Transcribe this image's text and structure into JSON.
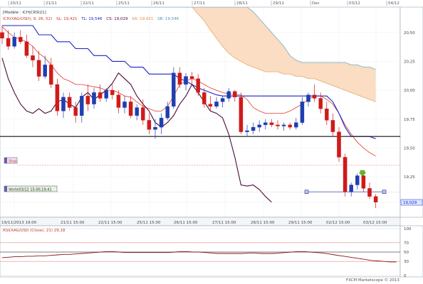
{
  "colors": {
    "up": "#1f3fb0",
    "down": "#d01a1a",
    "tenkan": "#e23a2a",
    "kijun": "#1a22c8",
    "chikou": "#4b0a3a",
    "cloud_fill": "#f9d7b8",
    "cloud_edge_a": "#e8b27a",
    "cloud_edge_b": "#7fb3c8",
    "grid": "#c9d4e2",
    "support": "#111111",
    "rsi_line": "#8a1515",
    "rsi_band": "#e58c8c"
  },
  "header": {
    "modele": "[Modèle : ICH|CRSI21]",
    "indicator_name": "ICH(XAG/USD), 9, 26, 52)",
    "sl": "SL: 19,421",
    "tl": "TL: 19,546",
    "cs": "CS: 19,029",
    "sa": "SA: 19,421",
    "sb": "SB: 19,546"
  },
  "top_axis": [
    "20/11",
    "21/11",
    "22/11",
    "25/11",
    "26/11",
    "27/11",
    "28/11",
    "29/11",
    "Dec",
    "03/12",
    "04/12"
  ],
  "bottom_axis": [
    "19/11/2013 19:00",
    "21/11 15:00",
    "22/11 15:00",
    "25/11 15:00",
    "26/11 15:00",
    "27/11 15:00",
    "28/11 15:00",
    "29/11 15:00",
    "02/12 15:00",
    "03/12 15:00"
  ],
  "price_ticks": [
    "20,50",
    "20,25",
    "20,00",
    "19,75",
    "19,50",
    "19,25"
  ],
  "price_tag": "19,029",
  "tags": {
    "stop_label": "Stop",
    "vente_label": "Vente03/12 15:00,19,41"
  },
  "rsi": {
    "label": "RSI(XAG/USD (Close), 21) 29,18",
    "ticks": [
      "100",
      "70",
      "50",
      "30",
      "0"
    ],
    "levels": [
      100,
      70,
      50,
      30,
      0
    ]
  },
  "footer_credit": "FXCM Marketscope © 2013",
  "chart_data": {
    "type": "candlestick",
    "symbol": "XAG/USD",
    "ylim": [
      18.9,
      20.72
    ],
    "price_ticks": [
      20.5,
      20.25,
      20.0,
      19.75,
      19.5,
      19.25
    ],
    "support_level": 19.6,
    "stop_level": 19.35,
    "entry_level": 19.12,
    "last_price": 19.029,
    "candles": [
      {
        "o": 20.5,
        "h": 20.56,
        "l": 20.4,
        "c": 20.45
      },
      {
        "o": 20.45,
        "h": 20.52,
        "l": 20.35,
        "c": 20.38
      },
      {
        "o": 20.38,
        "h": 20.5,
        "l": 20.36,
        "c": 20.46
      },
      {
        "o": 20.46,
        "h": 20.52,
        "l": 20.4,
        "c": 20.42
      },
      {
        "o": 20.42,
        "h": 20.48,
        "l": 20.28,
        "c": 20.3
      },
      {
        "o": 20.3,
        "h": 20.38,
        "l": 20.2,
        "c": 20.26
      },
      {
        "o": 20.26,
        "h": 20.34,
        "l": 20.08,
        "c": 20.12
      },
      {
        "o": 20.12,
        "h": 20.3,
        "l": 20.1,
        "c": 20.22
      },
      {
        "o": 20.22,
        "h": 20.28,
        "l": 20.02,
        "c": 20.05
      },
      {
        "o": 20.05,
        "h": 20.1,
        "l": 19.78,
        "c": 19.82
      },
      {
        "o": 19.82,
        "h": 19.98,
        "l": 19.76,
        "c": 19.94
      },
      {
        "o": 19.94,
        "h": 19.98,
        "l": 19.82,
        "c": 19.85
      },
      {
        "o": 19.85,
        "h": 19.9,
        "l": 19.72,
        "c": 19.78
      },
      {
        "o": 19.78,
        "h": 19.98,
        "l": 19.72,
        "c": 19.95
      },
      {
        "o": 19.95,
        "h": 20.05,
        "l": 19.82,
        "c": 19.88
      },
      {
        "o": 19.88,
        "h": 20.02,
        "l": 19.84,
        "c": 19.98
      },
      {
        "o": 19.98,
        "h": 20.05,
        "l": 19.9,
        "c": 19.93
      },
      {
        "o": 19.93,
        "h": 20.02,
        "l": 19.9,
        "c": 20.0
      },
      {
        "o": 20.0,
        "h": 20.05,
        "l": 19.92,
        "c": 19.96
      },
      {
        "o": 19.96,
        "h": 20.0,
        "l": 19.8,
        "c": 19.85
      },
      {
        "o": 19.85,
        "h": 19.95,
        "l": 19.8,
        "c": 19.9
      },
      {
        "o": 19.9,
        "h": 19.95,
        "l": 19.76,
        "c": 19.78
      },
      {
        "o": 19.78,
        "h": 19.88,
        "l": 19.74,
        "c": 19.85
      },
      {
        "o": 19.85,
        "h": 19.92,
        "l": 19.7,
        "c": 19.74
      },
      {
        "o": 19.74,
        "h": 19.8,
        "l": 19.62,
        "c": 19.66
      },
      {
        "o": 19.66,
        "h": 19.75,
        "l": 19.58,
        "c": 19.68
      },
      {
        "o": 19.68,
        "h": 19.8,
        "l": 19.62,
        "c": 19.76
      },
      {
        "o": 19.76,
        "h": 19.9,
        "l": 19.74,
        "c": 19.86
      },
      {
        "o": 19.86,
        "h": 20.2,
        "l": 19.84,
        "c": 20.15
      },
      {
        "o": 20.15,
        "h": 20.2,
        "l": 20.02,
        "c": 20.05
      },
      {
        "o": 20.05,
        "h": 20.15,
        "l": 20.0,
        "c": 20.12
      },
      {
        "o": 20.12,
        "h": 20.16,
        "l": 20.05,
        "c": 20.1
      },
      {
        "o": 20.1,
        "h": 20.14,
        "l": 19.95,
        "c": 19.98
      },
      {
        "o": 19.98,
        "h": 20.02,
        "l": 19.85,
        "c": 19.88
      },
      {
        "o": 19.88,
        "h": 19.95,
        "l": 19.82,
        "c": 19.86
      },
      {
        "o": 19.86,
        "h": 19.94,
        "l": 19.84,
        "c": 19.9
      },
      {
        "o": 19.9,
        "h": 19.95,
        "l": 19.85,
        "c": 19.93
      },
      {
        "o": 19.93,
        "h": 20.02,
        "l": 19.9,
        "c": 19.99
      },
      {
        "o": 19.99,
        "h": 20.0,
        "l": 19.9,
        "c": 19.94
      },
      {
        "o": 19.94,
        "h": 19.98,
        "l": 19.62,
        "c": 19.64
      },
      {
        "o": 19.64,
        "h": 19.7,
        "l": 19.6,
        "c": 19.65
      },
      {
        "o": 19.65,
        "h": 19.72,
        "l": 19.62,
        "c": 19.68
      },
      {
        "o": 19.68,
        "h": 19.74,
        "l": 19.64,
        "c": 19.7
      },
      {
        "o": 19.7,
        "h": 19.75,
        "l": 19.66,
        "c": 19.72
      },
      {
        "o": 19.72,
        "h": 19.75,
        "l": 19.68,
        "c": 19.7
      },
      {
        "o": 19.7,
        "h": 19.74,
        "l": 19.66,
        "c": 19.69
      },
      {
        "o": 19.69,
        "h": 19.72,
        "l": 19.65,
        "c": 19.7
      },
      {
        "o": 19.7,
        "h": 19.72,
        "l": 19.66,
        "c": 19.68
      },
      {
        "o": 19.68,
        "h": 19.76,
        "l": 19.66,
        "c": 19.72
      },
      {
        "o": 19.72,
        "h": 19.94,
        "l": 19.7,
        "c": 19.9
      },
      {
        "o": 19.9,
        "h": 19.98,
        "l": 19.86,
        "c": 19.96
      },
      {
        "o": 19.96,
        "h": 20.05,
        "l": 19.9,
        "c": 19.93
      },
      {
        "o": 19.93,
        "h": 19.98,
        "l": 19.8,
        "c": 19.84
      },
      {
        "o": 19.84,
        "h": 19.9,
        "l": 19.7,
        "c": 19.74
      },
      {
        "o": 19.74,
        "h": 19.8,
        "l": 19.6,
        "c": 19.64
      },
      {
        "o": 19.64,
        "h": 19.68,
        "l": 19.38,
        "c": 19.42
      },
      {
        "o": 19.42,
        "h": 19.45,
        "l": 19.08,
        "c": 19.12
      },
      {
        "o": 19.12,
        "h": 19.2,
        "l": 19.08,
        "c": 19.18
      },
      {
        "o": 19.18,
        "h": 19.28,
        "l": 19.14,
        "c": 19.26
      },
      {
        "o": 19.26,
        "h": 19.3,
        "l": 19.12,
        "c": 19.15
      },
      {
        "o": 19.15,
        "h": 19.2,
        "l": 19.06,
        "c": 19.08
      },
      {
        "o": 19.08,
        "h": 19.1,
        "l": 18.98,
        "c": 19.03
      }
    ],
    "tenkan_sen": [
      20.55,
      20.5,
      20.46,
      20.44,
      20.42,
      20.38,
      20.32,
      20.28,
      20.22,
      20.15,
      20.1,
      20.08,
      20.05,
      20.05,
      20.04,
      20.03,
      20.02,
      20.0,
      20.0,
      19.98,
      19.95,
      19.94,
      19.9,
      19.86,
      19.84,
      19.82,
      19.82,
      19.86,
      19.95,
      20.05,
      20.08,
      20.1,
      20.08,
      20.05,
      20.02,
      20.0,
      19.98,
      19.97,
      19.96,
      19.96,
      19.92,
      19.85,
      19.82,
      19.8,
      19.8,
      19.8,
      19.8,
      19.82,
      19.85,
      19.88,
      19.92,
      19.95,
      19.95,
      19.92,
      19.88,
      19.8,
      19.7,
      19.62,
      19.55,
      19.5,
      19.46,
      19.43
    ],
    "kijun_sen": [
      20.56,
      20.56,
      20.56,
      20.56,
      20.56,
      20.56,
      20.48,
      20.48,
      20.48,
      20.42,
      20.42,
      20.42,
      20.36,
      20.36,
      20.36,
      20.3,
      20.3,
      20.3,
      20.25,
      20.25,
      20.25,
      20.2,
      20.2,
      20.2,
      20.14,
      20.14,
      20.14,
      20.14,
      20.14,
      20.1,
      20.08,
      20.05,
      20.02,
      20.0,
      19.98,
      19.96,
      19.95,
      19.95,
      19.95,
      19.95,
      19.95,
      19.95,
      19.95,
      19.95,
      19.95,
      19.95,
      19.95,
      19.95,
      19.95,
      19.95,
      19.95,
      19.95,
      19.95,
      19.95,
      19.9,
      19.8,
      19.68,
      19.6,
      19.6,
      19.6,
      19.6,
      19.58
    ],
    "chikou_span": [
      20.28,
      20.1,
      19.98,
      19.88,
      19.82,
      19.8,
      19.84,
      19.8,
      19.82,
      19.9,
      19.92,
      19.88,
      19.85,
      19.94,
      19.98,
      19.92,
      19.96,
      20.0,
      20.06,
      20.15,
      20.1,
      20.05,
      19.95,
      19.88,
      19.82,
      19.72,
      19.68,
      19.72,
      19.78,
      19.88,
      19.95,
      20.05,
      19.98,
      19.9,
      19.82,
      19.8,
      19.76,
      19.62,
      19.42,
      19.18,
      19.17,
      19.18,
      19.14,
      19.08,
      19.03
    ],
    "senkou_span_a": [
      20.72,
      20.72,
      20.72,
      20.72,
      20.72,
      20.72,
      20.72,
      20.72,
      20.72,
      20.72,
      20.72,
      20.72,
      20.72,
      20.72,
      20.72,
      20.72,
      20.72,
      20.72,
      20.72,
      20.72,
      20.72,
      20.72,
      20.72,
      20.72,
      20.72,
      20.72,
      20.72,
      20.72,
      20.72,
      20.72,
      20.72,
      20.66,
      20.6,
      20.52,
      20.45,
      20.38,
      20.32,
      20.28,
      20.25,
      20.22,
      20.2,
      20.18,
      20.16,
      20.16,
      20.16,
      20.14,
      20.14,
      20.12,
      20.12,
      20.1,
      20.1,
      20.08,
      20.06,
      20.04,
      20.02,
      20.0,
      19.98,
      19.96,
      19.94,
      19.92,
      19.9
    ],
    "senkou_span_b": [
      20.72,
      20.72,
      20.72,
      20.72,
      20.72,
      20.72,
      20.72,
      20.72,
      20.72,
      20.72,
      20.72,
      20.72,
      20.72,
      20.72,
      20.72,
      20.72,
      20.72,
      20.72,
      20.72,
      20.72,
      20.72,
      20.72,
      20.72,
      20.72,
      20.72,
      20.72,
      20.72,
      20.72,
      20.72,
      20.72,
      20.72,
      20.72,
      20.72,
      20.72,
      20.72,
      20.72,
      20.72,
      20.72,
      20.72,
      20.72,
      20.68,
      20.62,
      20.56,
      20.5,
      20.44,
      20.38,
      20.3,
      20.26,
      20.24,
      20.24,
      20.24,
      20.24,
      20.24,
      20.24,
      20.24,
      20.24,
      20.22,
      20.22,
      20.2,
      20.2,
      20.18
    ],
    "rsi_ylim": [
      0,
      100
    ],
    "rsi_values": [
      38,
      39,
      40,
      40,
      41,
      41,
      42,
      42,
      43,
      44,
      45,
      45,
      46,
      47,
      48,
      49,
      50,
      51,
      51,
      50,
      49,
      49,
      49,
      49,
      49,
      49,
      49,
      49,
      50,
      51,
      51,
      50,
      50,
      49,
      48,
      47,
      47,
      47,
      47,
      47,
      48,
      48,
      47,
      47,
      47,
      48,
      49,
      50,
      51,
      51,
      50,
      49,
      48,
      46,
      44,
      42,
      40,
      38,
      36,
      34,
      32,
      31,
      30,
      29,
      29
    ]
  }
}
